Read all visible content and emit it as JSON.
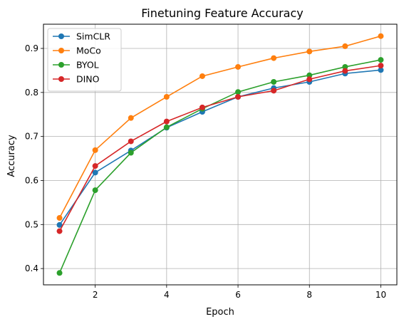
{
  "chart_data": {
    "type": "line",
    "title": "Finetuning Feature Accuracy",
    "xlabel": "Epoch",
    "ylabel": "Accuracy",
    "x": [
      1,
      2,
      3,
      4,
      5,
      6,
      7,
      8,
      9,
      10
    ],
    "xticks": [
      2,
      4,
      6,
      8,
      10
    ],
    "yticks": [
      0.4,
      0.5,
      0.6,
      0.7,
      0.8,
      0.9
    ],
    "xlim": [
      0.55,
      10.45
    ],
    "ylim": [
      0.363,
      0.955
    ],
    "grid": true,
    "legend_position": "top-left",
    "series": [
      {
        "name": "SimCLR",
        "color": "#1f77b4",
        "values": [
          0.499,
          0.618,
          0.668,
          0.72,
          0.756,
          0.79,
          0.81,
          0.824,
          0.843,
          0.851
        ]
      },
      {
        "name": "MoCo",
        "color": "#ff7f0e",
        "values": [
          0.515,
          0.669,
          0.742,
          0.79,
          0.837,
          0.858,
          0.878,
          0.893,
          0.905,
          0.928
        ]
      },
      {
        "name": "BYOL",
        "color": "#2ca02c",
        "values": [
          0.39,
          0.578,
          0.663,
          0.721,
          0.763,
          0.801,
          0.824,
          0.839,
          0.858,
          0.874
        ]
      },
      {
        "name": "DINO",
        "color": "#d62728",
        "values": [
          0.485,
          0.633,
          0.689,
          0.734,
          0.766,
          0.79,
          0.804,
          0.83,
          0.849,
          0.861
        ]
      }
    ]
  }
}
